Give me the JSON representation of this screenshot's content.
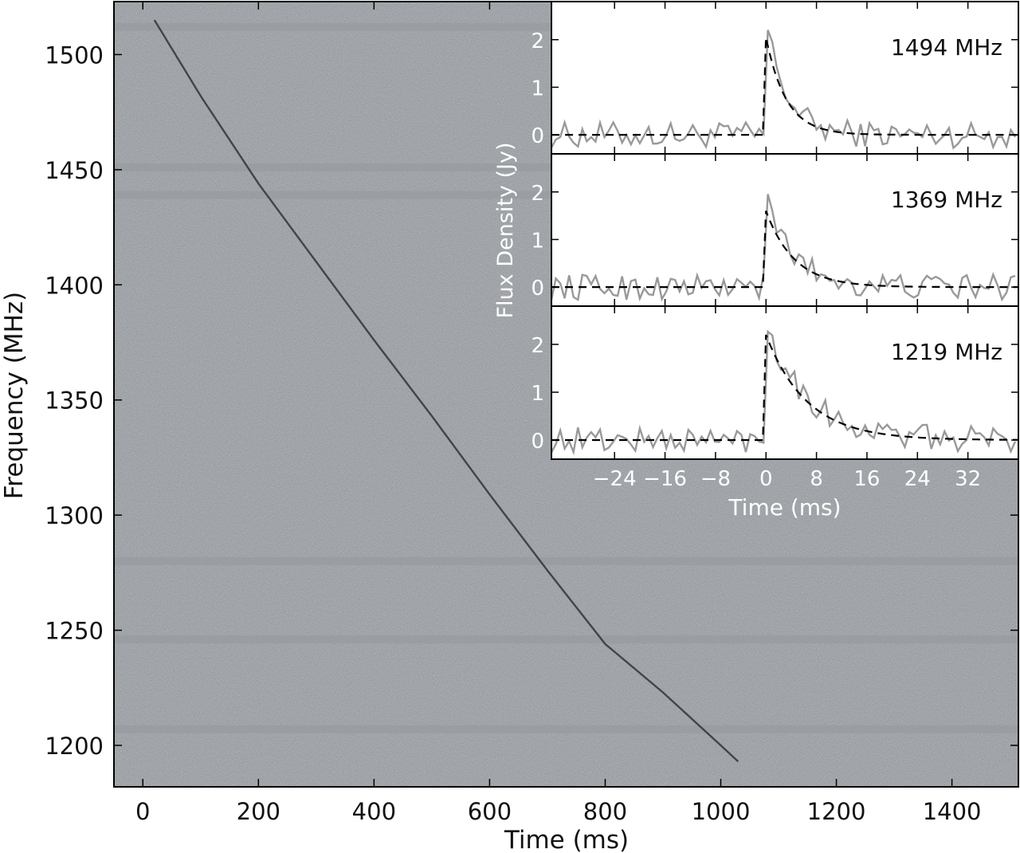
{
  "chart_data": {
    "main": {
      "type": "heatmap",
      "xlabel": "Time (ms)",
      "ylabel": "Frequency (MHz)",
      "xlim": [
        -50,
        1515
      ],
      "ylim": [
        1182,
        1523
      ],
      "xticks": [
        0,
        200,
        400,
        600,
        800,
        1000,
        1200,
        1400
      ],
      "yticks": [
        1200,
        1250,
        1300,
        1350,
        1400,
        1450,
        1500
      ],
      "colormap": "gray",
      "background": "#8f9499",
      "masked_channels_mhz": [
        1512,
        1451,
        1439,
        1280,
        1246,
        1207
      ],
      "dispersed_sweep": {
        "x_ms": [
          20,
          100,
          200,
          300,
          400,
          500,
          600,
          700,
          800,
          900,
          1000,
          1030
        ],
        "y_mhz": [
          1515,
          1482,
          1444,
          1410,
          1376,
          1343,
          1309,
          1276,
          1244,
          1223,
          1200,
          1193
        ]
      }
    },
    "inset": {
      "type": "line",
      "xlabel": "Time (ms)",
      "ylabel": "Flux Density (Jy)",
      "xlim": [
        -34,
        40
      ],
      "ylim": [
        -0.4,
        2.8
      ],
      "xticks": [
        -24,
        -16,
        -8,
        0,
        8,
        16,
        24,
        32
      ],
      "xtick_labels": [
        "−24",
        "−16",
        "−8",
        "0",
        "8",
        "16",
        "24",
        "32"
      ],
      "yticks": [
        0,
        1,
        2
      ],
      "panels": [
        {
          "label": "1494 MHz",
          "peak": 2.4,
          "model_peak": 2.05,
          "tau_ms": 3.2
        },
        {
          "label": "1369 MHz",
          "peak": 1.85,
          "model_peak": 1.6,
          "tau_ms": 4.5
        },
        {
          "label": "1219 MHz",
          "peak": 2.5,
          "model_peak": 2.2,
          "tau_ms": 6.5
        }
      ],
      "data_color": "#999999",
      "model_color": "#000000"
    }
  }
}
